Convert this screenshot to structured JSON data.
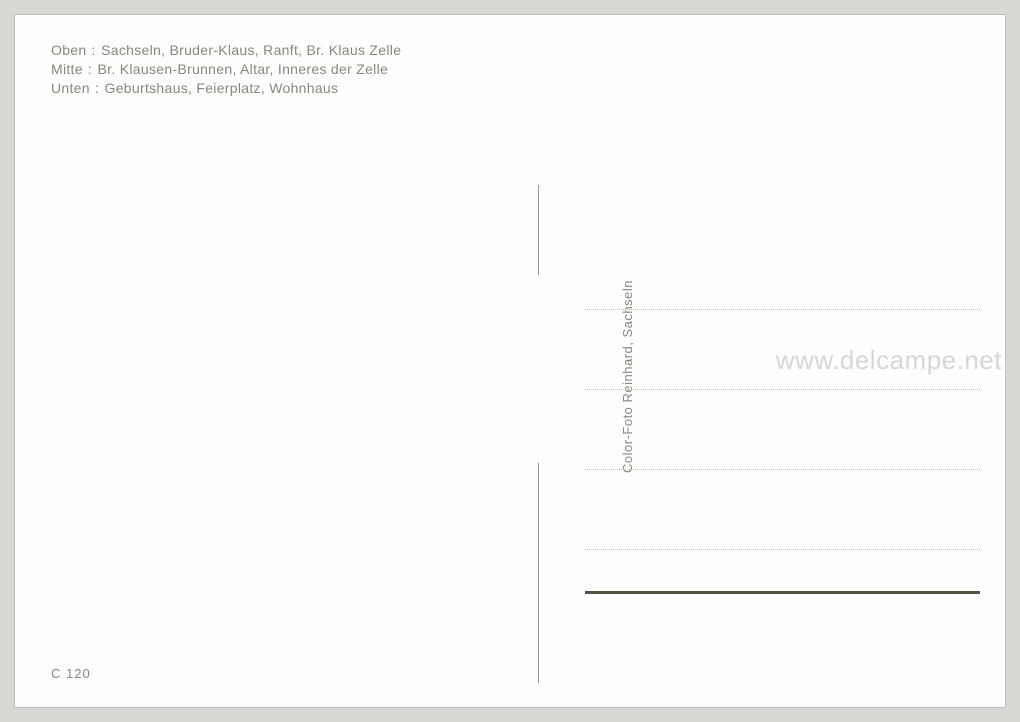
{
  "description": {
    "line1_prefix": "Oben",
    "line1_text": "Sachseln, Bruder-Klaus, Ranft, Br. Klaus Zelle",
    "line2_prefix": "Mitte",
    "line2_text": "Br. Klausen-Brunnen, Altar, Inneres der Zelle",
    "line3_prefix": "Unten",
    "line3_text": "Geburtshaus, Feierplatz, Wohnhaus"
  },
  "publisher": "Color-Foto Reinhard, Sachseln",
  "code": "C 120",
  "watermark": "www.delcampe.net",
  "styling": {
    "page_background": "#d8d8d4",
    "card_background": "#fefefe",
    "text_color": "#888878",
    "divider_color": "#999988",
    "dotted_line_color": "#bbbbaa",
    "solid_line_color": "#555544",
    "watermark_color": "rgba(140, 140, 130, 0.35)",
    "description_fontsize": 14,
    "vertical_text_fontsize": 13,
    "code_fontsize": 13,
    "watermark_fontsize": 26
  }
}
